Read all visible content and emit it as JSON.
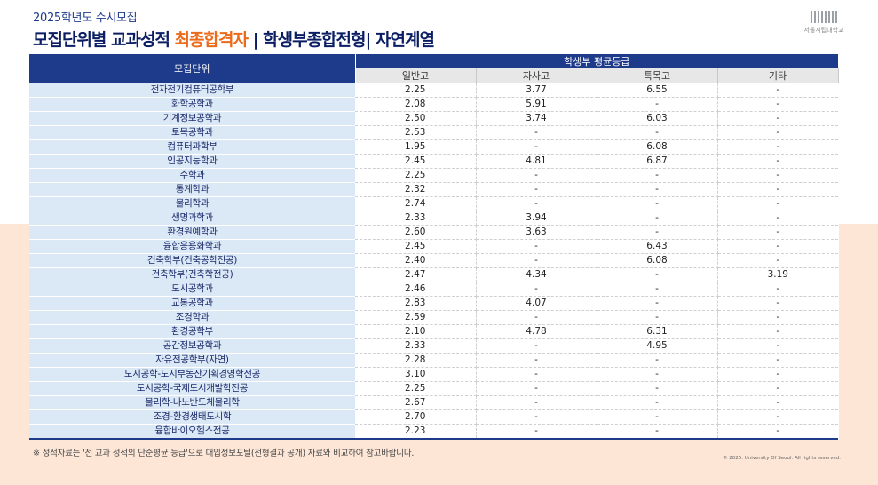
{
  "header": {
    "subtitle": "2025학년도 수시모집",
    "title_main": "모집단위별 교과성적 ",
    "title_accent": "최종합격자",
    "title_rest": " | 학생부종합전형| 자연계열"
  },
  "logo": {
    "name": "서울시립대학교",
    "icon": "university-logo-icon"
  },
  "table": {
    "unit_header": "모집단위",
    "group_header": "학생부 평균등급",
    "columns": [
      "일반고",
      "자사고",
      "특목고",
      "기타"
    ],
    "rows": [
      {
        "unit": "전자전기컴퓨터공학부",
        "values": [
          "2.25",
          "3.77",
          "6.55",
          "-"
        ]
      },
      {
        "unit": "화학공학과",
        "values": [
          "2.08",
          "5.91",
          "-",
          "-"
        ]
      },
      {
        "unit": "기계정보공학과",
        "values": [
          "2.50",
          "3.74",
          "6.03",
          "-"
        ]
      },
      {
        "unit": "토목공학과",
        "values": [
          "2.53",
          "-",
          "-",
          "-"
        ]
      },
      {
        "unit": "컴퓨터과학부",
        "values": [
          "1.95",
          "-",
          "6.08",
          "-"
        ]
      },
      {
        "unit": "인공지능학과",
        "values": [
          "2.45",
          "4.81",
          "6.87",
          "-"
        ]
      },
      {
        "unit": "수학과",
        "values": [
          "2.25",
          "-",
          "-",
          "-"
        ]
      },
      {
        "unit": "통계학과",
        "values": [
          "2.32",
          "-",
          "-",
          "-"
        ]
      },
      {
        "unit": "물리학과",
        "values": [
          "2.74",
          "-",
          "-",
          "-"
        ]
      },
      {
        "unit": "생명과학과",
        "values": [
          "2.33",
          "3.94",
          "-",
          "-"
        ]
      },
      {
        "unit": "환경원예학과",
        "values": [
          "2.60",
          "3.63",
          "-",
          "-"
        ]
      },
      {
        "unit": "융합응용화학과",
        "values": [
          "2.45",
          "-",
          "6.43",
          "-"
        ]
      },
      {
        "unit": "건축학부(건축공학전공)",
        "values": [
          "2.40",
          "-",
          "6.08",
          "-"
        ]
      },
      {
        "unit": "건축학부(건축학전공)",
        "values": [
          "2.47",
          "4.34",
          "-",
          "3.19"
        ]
      },
      {
        "unit": "도시공학과",
        "values": [
          "2.46",
          "-",
          "-",
          "-"
        ]
      },
      {
        "unit": "교통공학과",
        "values": [
          "2.83",
          "4.07",
          "-",
          "-"
        ]
      },
      {
        "unit": "조경학과",
        "values": [
          "2.59",
          "-",
          "-",
          "-"
        ]
      },
      {
        "unit": "환경공학부",
        "values": [
          "2.10",
          "4.78",
          "6.31",
          "-"
        ]
      },
      {
        "unit": "공간정보공학과",
        "values": [
          "2.33",
          "-",
          "4.95",
          "-"
        ]
      },
      {
        "unit": "자유전공학부(자연)",
        "values": [
          "2.28",
          "-",
          "-",
          "-"
        ]
      },
      {
        "unit": "도시공학-도시부동산기획경영학전공",
        "values": [
          "3.10",
          "-",
          "-",
          "-"
        ]
      },
      {
        "unit": "도시공학-국제도시개발학전공",
        "values": [
          "2.25",
          "-",
          "-",
          "-"
        ]
      },
      {
        "unit": "물리학-나노반도체물리학",
        "values": [
          "2.67",
          "-",
          "-",
          "-"
        ]
      },
      {
        "unit": "조경-환경생태도시학",
        "values": [
          "2.70",
          "-",
          "-",
          "-"
        ]
      },
      {
        "unit": "융합바이오헬스전공",
        "values": [
          "2.23",
          "-",
          "-",
          "-"
        ]
      }
    ]
  },
  "footnote": "※ 성적자료는 '전 교과 성적의 단순평균 등급'으로 대입정보포털(전형결과 공개) 자료와 비교하여 참고바랍니다.",
  "copyright": "© 2025. University Of Seoul. All rights reserved."
}
